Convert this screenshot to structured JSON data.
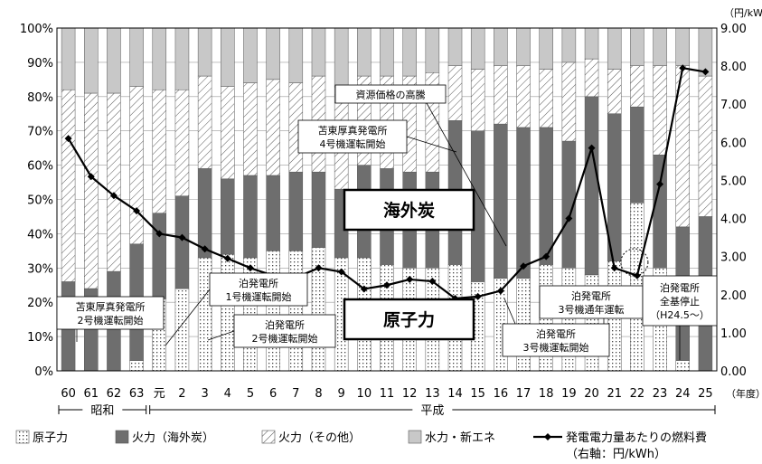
{
  "chart_data": {
    "type": "bar",
    "stacked": true,
    "categories": [
      "60",
      "61",
      "62",
      "63",
      "元",
      "2",
      "3",
      "4",
      "5",
      "6",
      "7",
      "8",
      "9",
      "10",
      "11",
      "12",
      "13",
      "14",
      "15",
      "16",
      "17",
      "18",
      "19",
      "20",
      "21",
      "22",
      "23",
      "24",
      "25"
    ],
    "series": [
      {
        "name": "原子力",
        "values": [
          0,
          0,
          0,
          3,
          21,
          24,
          33,
          34,
          33,
          35,
          35,
          36,
          33,
          33,
          31,
          30,
          30,
          31,
          26,
          27,
          27,
          31,
          30,
          28,
          32,
          49,
          30,
          3,
          0
        ],
        "color": "#f2f2f2",
        "pattern": "dots"
      },
      {
        "name": "火力（海外炭）",
        "values": [
          26,
          24,
          29,
          34,
          25,
          27,
          26,
          22,
          24,
          22,
          23,
          22,
          20,
          27,
          28,
          28,
          28,
          42,
          44,
          45,
          44,
          40,
          37,
          52,
          43,
          28,
          33,
          39,
          45
        ],
        "color": "#6e6e6e",
        "pattern": "solid"
      },
      {
        "name": "火力（その他）",
        "values": [
          56,
          57,
          52,
          46,
          36,
          31,
          27,
          27,
          27,
          28,
          26,
          28,
          30,
          26,
          27,
          28,
          29,
          16,
          18,
          17,
          18,
          17,
          23,
          11,
          13,
          12,
          26,
          47,
          41
        ],
        "color": "#ffffff",
        "pattern": "hatch"
      },
      {
        "name": "水力・新エネ",
        "values": [
          18,
          19,
          19,
          17,
          18,
          18,
          14,
          17,
          16,
          15,
          16,
          14,
          17,
          14,
          14,
          14,
          13,
          11,
          12,
          11,
          11,
          12,
          10,
          9,
          12,
          11,
          11,
          11,
          14
        ],
        "color": "#c8c8c8",
        "pattern": "solid"
      }
    ],
    "line_series": {
      "name": "発電電力量あたりの燃料費",
      "legend_sub": "（右軸：円/kWh）",
      "axis": "right",
      "values": [
        6.1,
        5.1,
        4.6,
        4.2,
        3.6,
        3.5,
        3.2,
        2.95,
        2.7,
        2.5,
        2.45,
        2.7,
        2.6,
        2.15,
        2.25,
        2.4,
        2.35,
        1.9,
        1.95,
        2.1,
        2.75,
        3.0,
        4.0,
        5.85,
        2.7,
        2.5,
        4.9,
        7.95,
        7.85
      ]
    },
    "y_left": {
      "min": 0,
      "max": 100,
      "ticks": [
        "0%",
        "10%",
        "20%",
        "30%",
        "40%",
        "50%",
        "60%",
        "70%",
        "80%",
        "90%",
        "100%"
      ]
    },
    "y_right": {
      "min": 0,
      "max": 9,
      "unit": "（円/kWh）",
      "ticks": [
        "0.00",
        "1.00",
        "2.00",
        "3.00",
        "4.00",
        "5.00",
        "6.00",
        "7.00",
        "8.00",
        "9.00"
      ]
    },
    "x_unit": "（年度）",
    "eras": [
      {
        "label": "昭和",
        "from": 0,
        "to": 3
      },
      {
        "label": "平成",
        "from": 4,
        "to": 28
      }
    ],
    "big_labels": [
      {
        "text": "海外炭"
      },
      {
        "text": "原子力"
      }
    ],
    "annotations": [
      {
        "lines": [
          "資源価格の高騰"
        ]
      },
      {
        "lines": [
          "苫東厚真発電所",
          "4号機運転開始"
        ]
      },
      {
        "lines": [
          "苫東厚真発電所",
          "2号機運転開始"
        ]
      },
      {
        "lines": [
          "泊発電所",
          "1号機運転開始"
        ]
      },
      {
        "lines": [
          "泊発電所",
          "2号機運転開始"
        ]
      },
      {
        "lines": [
          "泊発電所",
          "3号機通年運転"
        ]
      },
      {
        "lines": [
          "泊発電所",
          "3号機運転開始"
        ]
      },
      {
        "lines": [
          "泊発電所",
          "全基停止",
          "（H24.5～）"
        ]
      }
    ],
    "legend_position": "bottom",
    "grid": true
  }
}
